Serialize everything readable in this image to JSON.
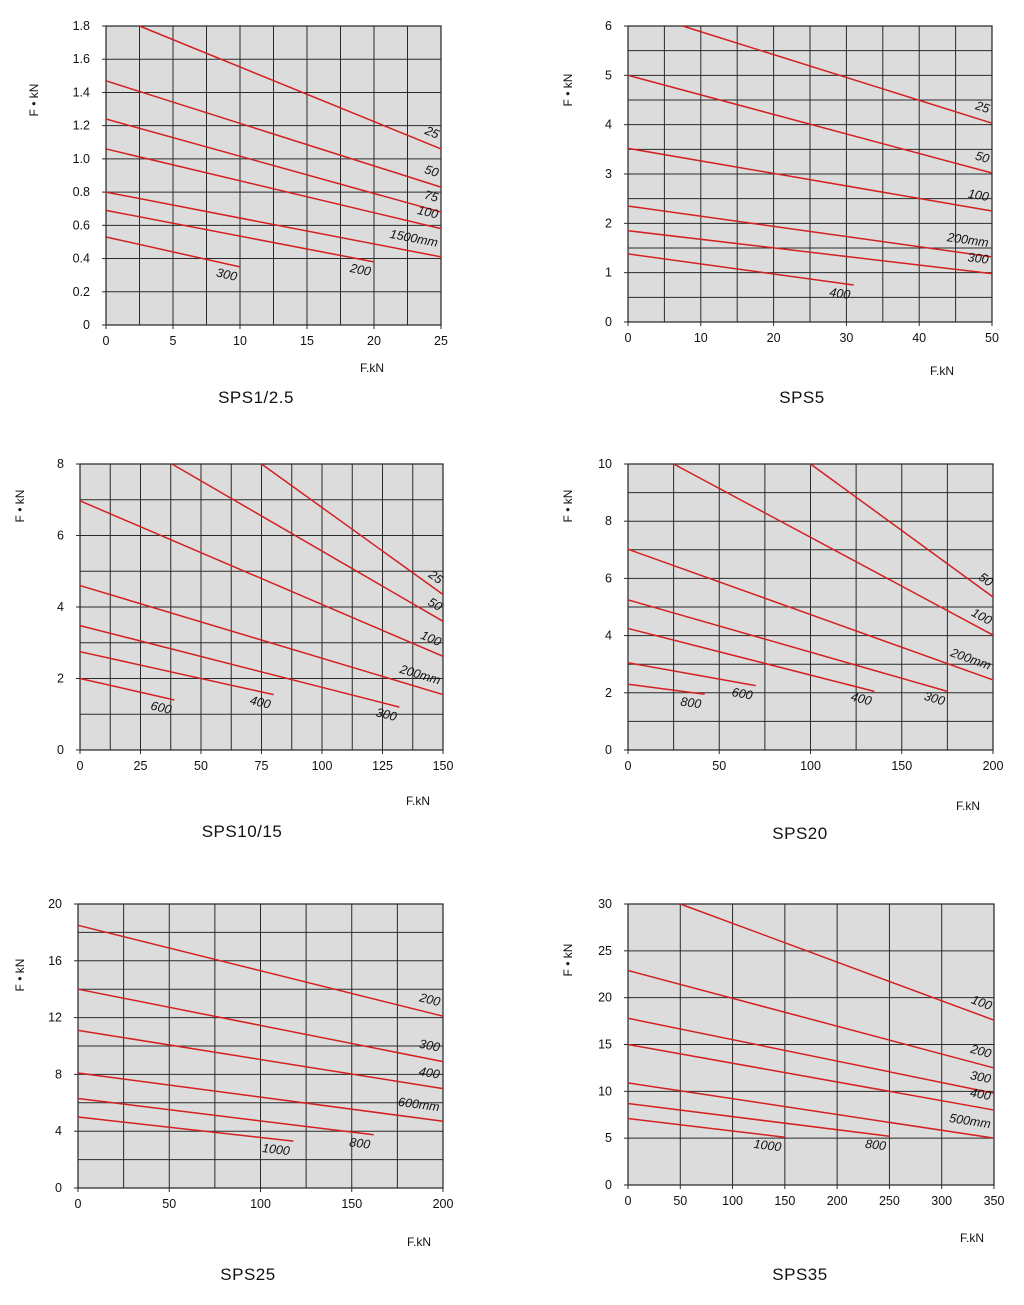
{
  "chart_data": [
    {
      "type": "line",
      "title": "SPS1/2.5",
      "xlabel": "F.kN",
      "ylabel": "F • kN",
      "xlim": [
        0,
        25
      ],
      "ylim": [
        0,
        1.8
      ],
      "x_ticks": [
        "0",
        "5",
        "10",
        "15",
        "20",
        "25"
      ],
      "y_ticks": [
        "0",
        "0.2",
        "0.4",
        "0.6",
        "0.8",
        "1.0",
        "1.2",
        "1.4",
        "1.6",
        "1.8"
      ],
      "grid": true,
      "series": [
        {
          "name": "25",
          "x": [
            2.5,
            25
          ],
          "y": [
            1.8,
            1.06
          ]
        },
        {
          "name": "50",
          "x": [
            0,
            25
          ],
          "y": [
            1.47,
            0.83
          ]
        },
        {
          "name": "75",
          "x": [
            0,
            25
          ],
          "y": [
            1.24,
            0.68
          ]
        },
        {
          "name": "100",
          "x": [
            0,
            25
          ],
          "y": [
            1.06,
            0.58
          ]
        },
        {
          "name": "1500mm",
          "x": [
            0,
            25
          ],
          "y": [
            0.8,
            0.41
          ]
        },
        {
          "name": "200",
          "x": [
            0,
            20
          ],
          "y": [
            0.69,
            0.38
          ]
        },
        {
          "name": "300",
          "x": [
            0,
            10
          ],
          "y": [
            0.53,
            0.35
          ]
        }
      ]
    },
    {
      "type": "line",
      "title": "SPS5",
      "xlabel": "F.kN",
      "ylabel": "F • kN",
      "xlim": [
        0,
        50
      ],
      "ylim": [
        0,
        6
      ],
      "x_ticks": [
        "0",
        "10",
        "20",
        "30",
        "40",
        "50"
      ],
      "y_ticks": [
        "0",
        "1",
        "2",
        "3",
        "4",
        "5",
        "6"
      ],
      "grid": true,
      "series": [
        {
          "name": "25",
          "x": [
            7.5,
            50
          ],
          "y": [
            6,
            4.03
          ]
        },
        {
          "name": "50",
          "x": [
            0,
            50
          ],
          "y": [
            5,
            3.02
          ]
        },
        {
          "name": "100",
          "x": [
            0,
            50
          ],
          "y": [
            3.52,
            2.25
          ]
        },
        {
          "name": "200mm",
          "x": [
            0,
            50
          ],
          "y": [
            2.35,
            1.32
          ]
        },
        {
          "name": "300",
          "x": [
            0,
            50
          ],
          "y": [
            1.85,
            0.98
          ]
        },
        {
          "name": "400",
          "x": [
            0,
            31
          ],
          "y": [
            1.38,
            0.75
          ]
        }
      ]
    },
    {
      "type": "line",
      "title": "SPS10/15",
      "xlabel": "F.kN",
      "ylabel": "F • kN",
      "xlim": [
        0,
        150
      ],
      "ylim": [
        0,
        8
      ],
      "x_ticks": [
        "0",
        "25",
        "50",
        "75",
        "100",
        "125",
        "150"
      ],
      "y_ticks": [
        "0",
        "2",
        "4",
        "6",
        "8"
      ],
      "grid": true,
      "series": [
        {
          "name": "25",
          "x": [
            75,
            150
          ],
          "y": [
            8,
            4.35
          ]
        },
        {
          "name": "50",
          "x": [
            38,
            150
          ],
          "y": [
            8,
            3.6
          ]
        },
        {
          "name": "100",
          "x": [
            0,
            150
          ],
          "y": [
            6.97,
            2.62
          ]
        },
        {
          "name": "200mm",
          "x": [
            0,
            150
          ],
          "y": [
            4.6,
            1.55
          ]
        },
        {
          "name": "300",
          "x": [
            0,
            132
          ],
          "y": [
            3.48,
            1.2
          ]
        },
        {
          "name": "400",
          "x": [
            0,
            80
          ],
          "y": [
            2.75,
            1.55
          ]
        },
        {
          "name": "600",
          "x": [
            0,
            39
          ],
          "y": [
            2.0,
            1.4
          ]
        }
      ]
    },
    {
      "type": "line",
      "title": "SPS20",
      "xlabel": "F.kN",
      "ylabel": "F • kN",
      "xlim": [
        0,
        200
      ],
      "ylim": [
        0,
        10
      ],
      "x_ticks": [
        "0",
        "50",
        "100",
        "150",
        "200"
      ],
      "y_ticks": [
        "0",
        "2",
        "4",
        "6",
        "8",
        "10"
      ],
      "grid": true,
      "series": [
        {
          "name": "50",
          "x": [
            100,
            200
          ],
          "y": [
            10,
            5.35
          ]
        },
        {
          "name": "100",
          "x": [
            25,
            200
          ],
          "y": [
            10,
            4.02
          ]
        },
        {
          "name": "200mm",
          "x": [
            0,
            200
          ],
          "y": [
            7.02,
            2.45
          ]
        },
        {
          "name": "300",
          "x": [
            0,
            175
          ],
          "y": [
            5.25,
            2.05
          ]
        },
        {
          "name": "400",
          "x": [
            0,
            135
          ],
          "y": [
            4.25,
            2.05
          ]
        },
        {
          "name": "600",
          "x": [
            0,
            70
          ],
          "y": [
            3.05,
            2.25
          ]
        },
        {
          "name": "800",
          "x": [
            0,
            42
          ],
          "y": [
            2.3,
            1.95
          ]
        }
      ]
    },
    {
      "type": "line",
      "title": "SPS25",
      "xlabel": "F.kN",
      "ylabel": "F • kN",
      "xlim": [
        0,
        200
      ],
      "ylim": [
        0,
        20
      ],
      "x_ticks": [
        "0",
        "50",
        "100",
        "150",
        "200"
      ],
      "y_ticks": [
        "0",
        "4",
        "8",
        "12",
        "16",
        "20"
      ],
      "grid": true,
      "series": [
        {
          "name": "200",
          "x": [
            0,
            200
          ],
          "y": [
            18.5,
            12.1
          ]
        },
        {
          "name": "300",
          "x": [
            0,
            200
          ],
          "y": [
            14.0,
            8.9
          ]
        },
        {
          "name": "400",
          "x": [
            0,
            200
          ],
          "y": [
            11.1,
            7.0
          ]
        },
        {
          "name": "600mm",
          "x": [
            0,
            200
          ],
          "y": [
            8.1,
            4.7
          ]
        },
        {
          "name": "800",
          "x": [
            0,
            162
          ],
          "y": [
            6.3,
            3.75
          ]
        },
        {
          "name": "1000",
          "x": [
            0,
            118
          ],
          "y": [
            5.0,
            3.3
          ]
        }
      ]
    },
    {
      "type": "line",
      "title": "SPS35",
      "xlabel": "F.kN",
      "ylabel": "F • kN",
      "xlim": [
        0,
        350
      ],
      "ylim": [
        0,
        30
      ],
      "x_ticks": [
        "0",
        "50",
        "100",
        "150",
        "200",
        "250",
        "300",
        "350"
      ],
      "y_ticks": [
        "0",
        "5",
        "10",
        "15",
        "20",
        "25",
        "30"
      ],
      "grid": true,
      "series": [
        {
          "name": "100",
          "x": [
            50,
            350
          ],
          "y": [
            30,
            17.6
          ]
        },
        {
          "name": "200",
          "x": [
            0,
            350
          ],
          "y": [
            22.9,
            12.5
          ]
        },
        {
          "name": "300",
          "x": [
            0,
            350
          ],
          "y": [
            17.8,
            9.8
          ]
        },
        {
          "name": "400",
          "x": [
            0,
            350
          ],
          "y": [
            15.0,
            8.0
          ]
        },
        {
          "name": "500mm",
          "x": [
            0,
            350
          ],
          "y": [
            10.9,
            5.0
          ]
        },
        {
          "name": "800",
          "x": [
            0,
            250
          ],
          "y": [
            8.7,
            5.2
          ]
        },
        {
          "name": "1000",
          "x": [
            0,
            150
          ],
          "y": [
            7.1,
            5.1
          ]
        }
      ]
    }
  ]
}
